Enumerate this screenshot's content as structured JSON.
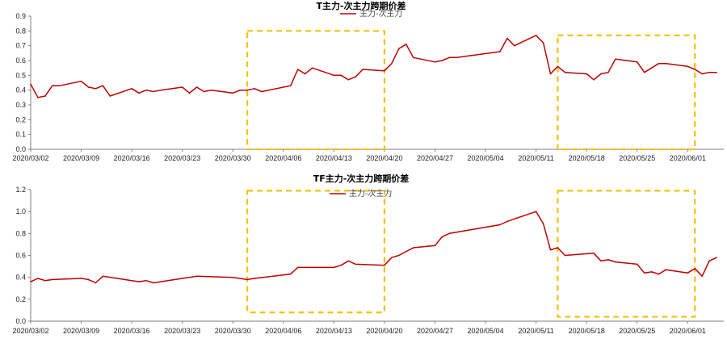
{
  "chart_data": [
    {
      "type": "line",
      "title": "T主力-次主力跨期价差",
      "legend": [
        "主力-次主力"
      ],
      "legend_position": "top-center",
      "xlabel": "",
      "ylabel": "",
      "ylim": [
        0,
        0.9
      ],
      "yticks": [
        "0.0",
        "0.1",
        "0.2",
        "0.3",
        "0.4",
        "0.5",
        "0.6",
        "0.7",
        "0.8",
        "0.9"
      ],
      "xlim": [
        "2020/03/02",
        "2020/06/05"
      ],
      "xticks": [
        "2020/03/02",
        "2020/03/09",
        "2020/03/16",
        "2020/03/23",
        "2020/03/30",
        "2020/04/06",
        "2020/04/13",
        "2020/04/20",
        "2020/04/27",
        "2020/05/04",
        "2020/05/11",
        "2020/05/18",
        "2020/05/25",
        "2020/06/01"
      ],
      "grid": false,
      "line_color": "#c00000",
      "series": [
        {
          "name": "主力-次主力",
          "x": [
            "2020/03/02",
            "2020/03/03",
            "2020/03/04",
            "2020/03/05",
            "2020/03/06",
            "2020/03/09",
            "2020/03/10",
            "2020/03/11",
            "2020/03/12",
            "2020/03/13",
            "2020/03/16",
            "2020/03/17",
            "2020/03/18",
            "2020/03/19",
            "2020/03/20",
            "2020/03/23",
            "2020/03/24",
            "2020/03/25",
            "2020/03/26",
            "2020/03/27",
            "2020/03/30",
            "2020/03/31",
            "2020/04/01",
            "2020/04/02",
            "2020/04/03",
            "2020/04/07",
            "2020/04/08",
            "2020/04/09",
            "2020/04/10",
            "2020/04/13",
            "2020/04/14",
            "2020/04/15",
            "2020/04/16",
            "2020/04/17",
            "2020/04/20",
            "2020/04/21",
            "2020/04/22",
            "2020/04/23",
            "2020/04/24",
            "2020/04/27",
            "2020/04/28",
            "2020/04/29",
            "2020/04/30",
            "2020/05/06",
            "2020/05/07",
            "2020/05/08",
            "2020/05/11",
            "2020/05/12",
            "2020/05/13",
            "2020/05/14",
            "2020/05/15",
            "2020/05/18",
            "2020/05/19",
            "2020/05/20",
            "2020/05/21",
            "2020/05/22",
            "2020/05/25",
            "2020/05/26",
            "2020/05/27",
            "2020/05/28",
            "2020/05/29",
            "2020/06/01",
            "2020/06/02",
            "2020/06/03",
            "2020/06/04",
            "2020/06/05"
          ],
          "values": [
            0.44,
            0.35,
            0.36,
            0.43,
            0.43,
            0.46,
            0.42,
            0.41,
            0.43,
            0.36,
            0.41,
            0.38,
            0.4,
            0.39,
            0.4,
            0.42,
            0.38,
            0.42,
            0.39,
            0.4,
            0.38,
            0.4,
            0.4,
            0.41,
            0.39,
            0.43,
            0.54,
            0.51,
            0.55,
            0.5,
            0.5,
            0.47,
            0.49,
            0.54,
            0.53,
            0.58,
            0.68,
            0.71,
            0.62,
            0.59,
            0.6,
            0.62,
            0.62,
            0.66,
            0.75,
            0.7,
            0.77,
            0.72,
            0.51,
            0.56,
            0.52,
            0.51,
            0.47,
            0.51,
            0.52,
            0.61,
            0.59,
            0.52,
            0.55,
            0.58,
            0.58,
            0.56,
            0.54,
            0.51,
            0.52,
            0.52
          ]
        }
      ],
      "highlight_boxes": [
        {
          "x": [
            "2020/04/01",
            "2020/04/20"
          ],
          "y": [
            0,
            0.8
          ],
          "color": "#f4c20d"
        },
        {
          "x": [
            "2020/05/14",
            "2020/06/02"
          ],
          "y": [
            0,
            0.77
          ],
          "color": "#f4c20d"
        }
      ]
    },
    {
      "type": "line",
      "title": "TF主力-次主力跨期价差",
      "legend": [
        "主力-次主力"
      ],
      "legend_position": "top-center",
      "xlabel": "",
      "ylabel": "",
      "ylim": [
        0,
        1.2
      ],
      "yticks": [
        "0.0",
        "0.2",
        "0.4",
        "0.6",
        "0.8",
        "1.0",
        "1.2"
      ],
      "xlim": [
        "2020/03/02",
        "2020/06/05"
      ],
      "xticks": [
        "2020/03/02",
        "2020/03/09",
        "2020/03/16",
        "2020/03/23",
        "2020/03/30",
        "2020/04/06",
        "2020/04/13",
        "2020/04/20",
        "2020/04/27",
        "2020/05/04",
        "2020/05/11",
        "2020/05/18",
        "2020/05/25",
        "2020/06/01"
      ],
      "grid": false,
      "line_color": "#c00000",
      "series": [
        {
          "name": "主力-次主力",
          "x": [
            "2020/03/02",
            "2020/03/03",
            "2020/03/04",
            "2020/03/05",
            "2020/03/09",
            "2020/03/10",
            "2020/03/11",
            "2020/03/12",
            "2020/03/16",
            "2020/03/17",
            "2020/03/18",
            "2020/03/19",
            "2020/03/23",
            "2020/03/24",
            "2020/03/25",
            "2020/03/30",
            "2020/04/01",
            "2020/04/02",
            "2020/04/07",
            "2020/04/08",
            "2020/04/09",
            "2020/04/13",
            "2020/04/14",
            "2020/04/15",
            "2020/04/16",
            "2020/04/20",
            "2020/04/21",
            "2020/04/22",
            "2020/04/24",
            "2020/04/27",
            "2020/04/28",
            "2020/04/29",
            "2020/05/06",
            "2020/05/07",
            "2020/05/11",
            "2020/05/12",
            "2020/05/13",
            "2020/05/14",
            "2020/05/15",
            "2020/05/19",
            "2020/05/20",
            "2020/05/21",
            "2020/05/22",
            "2020/05/25",
            "2020/05/26",
            "2020/05/27",
            "2020/05/28",
            "2020/05/29",
            "2020/06/01",
            "2020/06/02",
            "2020/06/03",
            "2020/06/04",
            "2020/06/05"
          ],
          "values": [
            0.36,
            0.39,
            0.37,
            0.38,
            0.39,
            0.38,
            0.35,
            0.41,
            0.37,
            0.36,
            0.37,
            0.35,
            0.39,
            0.4,
            0.41,
            0.4,
            0.38,
            0.39,
            0.43,
            0.49,
            0.49,
            0.49,
            0.51,
            0.55,
            0.52,
            0.51,
            0.58,
            0.6,
            0.67,
            0.69,
            0.77,
            0.8,
            0.88,
            0.91,
            1.0,
            0.89,
            0.65,
            0.67,
            0.6,
            0.62,
            0.55,
            0.56,
            0.54,
            0.52,
            0.44,
            0.45,
            0.43,
            0.47,
            0.44,
            0.48,
            0.41,
            0.55,
            0.58
          ]
        }
      ],
      "highlight_boxes": [
        {
          "x": [
            "2020/04/01",
            "2020/04/20"
          ],
          "y": [
            0.08,
            1.19
          ],
          "color": "#f4c20d"
        },
        {
          "x": [
            "2020/05/14",
            "2020/06/02"
          ],
          "y": [
            0.04,
            1.19
          ],
          "color": "#f4c20d"
        }
      ]
    }
  ]
}
